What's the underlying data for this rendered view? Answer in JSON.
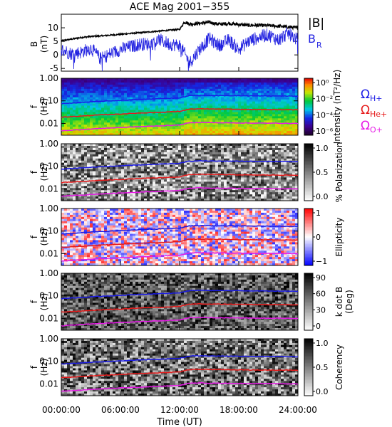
{
  "title": "ACE Mag 2001−355",
  "time_axis": {
    "label": "Time (UT)",
    "ticks": [
      "00:00:00",
      "06:00:00",
      "12:00:00",
      "18:00:00",
      "24:00:00"
    ],
    "range_hours": [
      0,
      24
    ]
  },
  "colors": {
    "B_total": "#000000",
    "B_R": "#2020e0",
    "H_plus": "#1a1ae6",
    "He_plus": "#e61a1a",
    "O_plus": "#e61ae6"
  },
  "chart_data": [
    {
      "type": "line",
      "panel": "magnetic-field",
      "ylabel": "B",
      "yunit": "(nT)",
      "ylim": [
        -6,
        15
      ],
      "yticks": [
        "10",
        "5",
        "0",
        "-5"
      ],
      "series": [
        {
          "name": "|B|",
          "x": [
            0,
            1,
            2,
            3,
            4,
            5,
            6,
            7,
            8,
            9,
            10,
            11,
            12,
            12.5,
            13,
            14,
            15,
            16,
            17,
            18,
            19,
            20,
            21,
            22,
            23,
            24
          ],
          "values": [
            5.2,
            5.8,
            6.4,
            6.8,
            7.0,
            7.3,
            7.6,
            7.9,
            8.2,
            8.5,
            8.8,
            9.1,
            9.4,
            12.2,
            11.4,
            11.6,
            12.0,
            11.3,
            11.6,
            11.2,
            10.9,
            10.9,
            10.8,
            10.6,
            10.3,
            10.0
          ]
        },
        {
          "name": "B_R",
          "x": [
            0,
            1,
            2,
            3,
            4,
            5,
            6,
            7,
            8,
            9,
            10,
            11,
            12,
            12.5,
            13,
            14,
            15,
            16,
            17,
            18,
            19,
            20,
            21,
            22,
            23,
            24
          ],
          "values": [
            2.0,
            0.5,
            1.0,
            2.5,
            -1.5,
            0.5,
            2.0,
            3.0,
            4.0,
            4.0,
            5.5,
            4.0,
            3.5,
            0.5,
            -3.0,
            2.0,
            6.0,
            3.5,
            5.5,
            2.0,
            5.0,
            6.5,
            7.5,
            5.5,
            8.0,
            5.5
          ]
        }
      ],
      "legend": [
        "|B|",
        "B",
        "R"
      ],
      "legend_placement": "right"
    },
    {
      "type": "heatmap",
      "panel": "intensity",
      "ylabel": "f",
      "yunit": "(Hz)",
      "yscale": "log",
      "ylim": [
        0.003,
        1.0
      ],
      "yticks": [
        "1.00",
        "0.10",
        "0.01"
      ],
      "colorbar": {
        "label": "Intensity (nT²/Hz)",
        "ticks": [
          "10⁰",
          "10⁻²",
          "10⁻⁴",
          "10⁻⁶"
        ],
        "range": [
          -6.5,
          0.5
        ],
        "scale": "rainbow"
      },
      "legend": [
        "Ω",
        "H+",
        "Ω",
        "He+",
        "Ω",
        "O+"
      ],
      "legend_placement": "right"
    },
    {
      "type": "heatmap",
      "panel": "polarization",
      "ylabel": "f",
      "yunit": "(Hz)",
      "yscale": "log",
      "ylim": [
        0.003,
        1.0
      ],
      "yticks": [
        "1.00",
        "0.10",
        "0.01"
      ],
      "colorbar": {
        "label": "% Polarization",
        "ticks": [
          "1.0",
          "0.5",
          "0.0"
        ],
        "range": [
          0,
          1
        ],
        "scale": "gray"
      }
    },
    {
      "type": "heatmap",
      "panel": "ellipticity",
      "ylabel": "f",
      "yunit": "(Hz)",
      "yscale": "log",
      "ylim": [
        0.003,
        1.0
      ],
      "yticks": [
        "1.00",
        "0.10",
        "0.01"
      ],
      "colorbar": {
        "label": "Ellipticity",
        "ticks": [
          "1",
          "0",
          "−1"
        ],
        "range": [
          -1,
          1
        ],
        "scale": "blue-white-red"
      }
    },
    {
      "type": "heatmap",
      "panel": "k-dot-b",
      "ylabel": "f",
      "yunit": "(Hz)",
      "yscale": "log",
      "ylim": [
        0.003,
        1.0
      ],
      "yticks": [
        "1.00",
        "0.10",
        "0.01"
      ],
      "colorbar": {
        "label": "k dot B",
        "unit": "(Deg)",
        "ticks": [
          "90",
          "60",
          "30",
          "0"
        ],
        "range": [
          0,
          90
        ],
        "scale": "gray"
      }
    },
    {
      "type": "heatmap",
      "panel": "coherency",
      "ylabel": "f",
      "yunit": "(Hz)",
      "yscale": "log",
      "ylim": [
        0.003,
        1.0
      ],
      "yticks": [
        "1.00",
        "0.10",
        "0.01"
      ],
      "colorbar": {
        "label": "Coherency",
        "ticks": [
          "1.0",
          "0.5",
          "0.0"
        ],
        "range": [
          0,
          1
        ],
        "scale": "gray"
      }
    }
  ],
  "gyrofrequency_lines": {
    "x": [
      0,
      2,
      4,
      6,
      8,
      10,
      12,
      13,
      14,
      16,
      18,
      20,
      22,
      24
    ],
    "H_plus": [
      0.075,
      0.085,
      0.095,
      0.105,
      0.115,
      0.125,
      0.135,
      0.17,
      0.175,
      0.17,
      0.17,
      0.165,
      0.165,
      0.16
    ],
    "He_plus": [
      0.019,
      0.021,
      0.024,
      0.026,
      0.029,
      0.031,
      0.034,
      0.043,
      0.044,
      0.043,
      0.042,
      0.041,
      0.041,
      0.04
    ],
    "O_plus": [
      0.0047,
      0.0053,
      0.006,
      0.0066,
      0.0072,
      0.0078,
      0.0085,
      0.0107,
      0.011,
      0.0107,
      0.0105,
      0.0103,
      0.0102,
      0.01
    ]
  }
}
